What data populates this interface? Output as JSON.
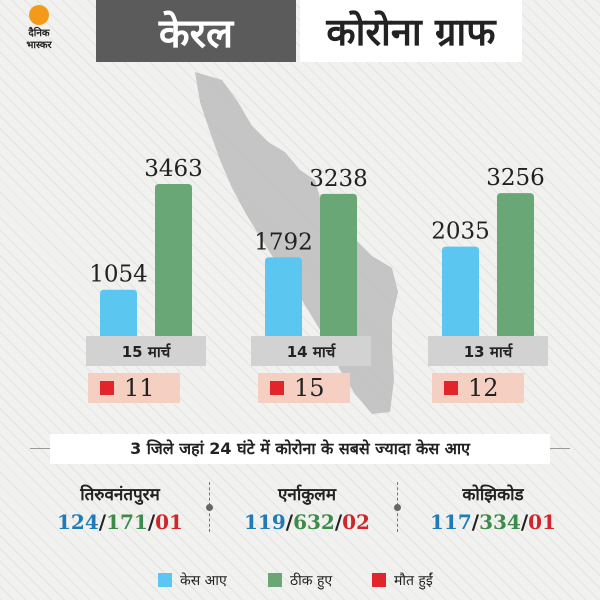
{
  "brand": {
    "line1": "दैनिक",
    "line2": "भास्कर"
  },
  "header": {
    "title_left": "केरल",
    "title_right": "कोरोना ग्राफ"
  },
  "colors": {
    "cases": "#5bc6ef",
    "recovered": "#6aa776",
    "deaths": "#e0262b",
    "date_bar": "#d2d2d2",
    "death_box": "#f5cfc2"
  },
  "chart_data": {
    "type": "bar",
    "categories": [
      "15 मार्च",
      "14 मार्च",
      "13 मार्च"
    ],
    "series": [
      {
        "name": "केस आए",
        "values": [
          1054,
          1792,
          2035
        ]
      },
      {
        "name": "ठीक हुए",
        "values": [
          3463,
          3238,
          3256
        ]
      },
      {
        "name": "मौत हुईं",
        "values": [
          11,
          15,
          12
        ]
      }
    ],
    "title": "कोरोना ग्राफ",
    "xlabel": "",
    "ylabel": "",
    "ylim": [
      0,
      3600
    ],
    "grid": false,
    "legend": "bottom"
  },
  "districts_title": "3 जिले जहां 24 घंटे में कोरोना के सबसे ज्यादा केस आए",
  "districts": [
    {
      "name": "तिरुवनंतपुरम",
      "cases": "124",
      "recovered": "171",
      "deaths": "01"
    },
    {
      "name": "एर्नाकुलम",
      "cases": "119",
      "recovered": "632",
      "deaths": "02"
    },
    {
      "name": "कोझिकोड",
      "cases": "117",
      "recovered": "334",
      "deaths": "01"
    }
  ],
  "legend": {
    "cases": "केस आए",
    "recovered": "ठीक हुए",
    "deaths": "मौत हुईं"
  }
}
